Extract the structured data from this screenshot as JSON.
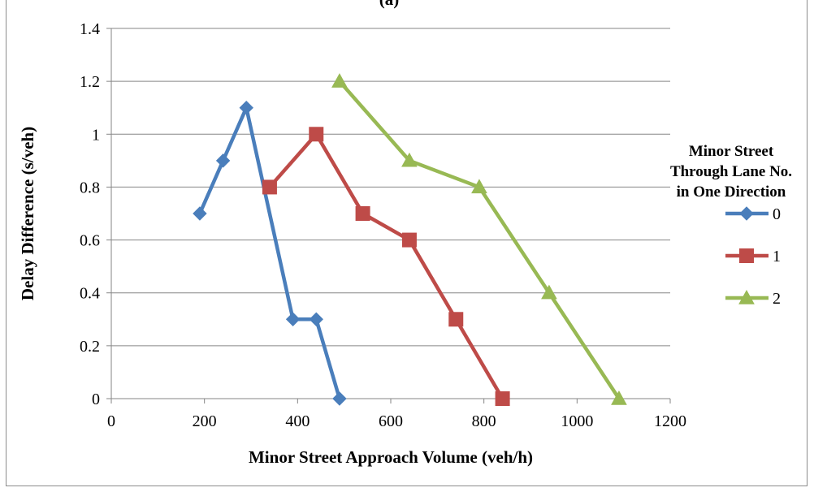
{
  "chart_data": {
    "type": "line",
    "title": "(a)",
    "xlabel": "Minor Street Approach Volume  (veh/h)",
    "ylabel": "Delay Difference (s/veh)",
    "xlim": [
      0,
      1200
    ],
    "ylim": [
      0,
      1.4
    ],
    "x_ticks": [
      "0",
      "200",
      "400",
      "600",
      "800",
      "1000",
      "1200"
    ],
    "y_ticks": [
      "0",
      "0.2",
      "0.4",
      "0.6",
      "0.8",
      "1",
      "1.2",
      "1.4"
    ],
    "grid": "horizontal",
    "legend": {
      "title": [
        "Minor Street",
        "Through Lane No.",
        "in One Direction"
      ],
      "placement": "right"
    },
    "series": [
      {
        "name": "0",
        "color": "#4a7ebb",
        "marker": "diamond",
        "x": [
          190,
          240,
          290,
          390,
          440,
          490
        ],
        "y": [
          0.7,
          0.9,
          1.1,
          0.3,
          0.3,
          0.0
        ]
      },
      {
        "name": "1",
        "color": "#be4b48",
        "marker": "square",
        "x": [
          340,
          440,
          540,
          640,
          740,
          840
        ],
        "y": [
          0.8,
          1.0,
          0.7,
          0.6,
          0.3,
          0.0
        ]
      },
      {
        "name": "2",
        "color": "#98b954",
        "marker": "triangle",
        "x": [
          490,
          640,
          790,
          940,
          1090
        ],
        "y": [
          1.2,
          0.9,
          0.8,
          0.4,
          0.0
        ]
      }
    ]
  }
}
